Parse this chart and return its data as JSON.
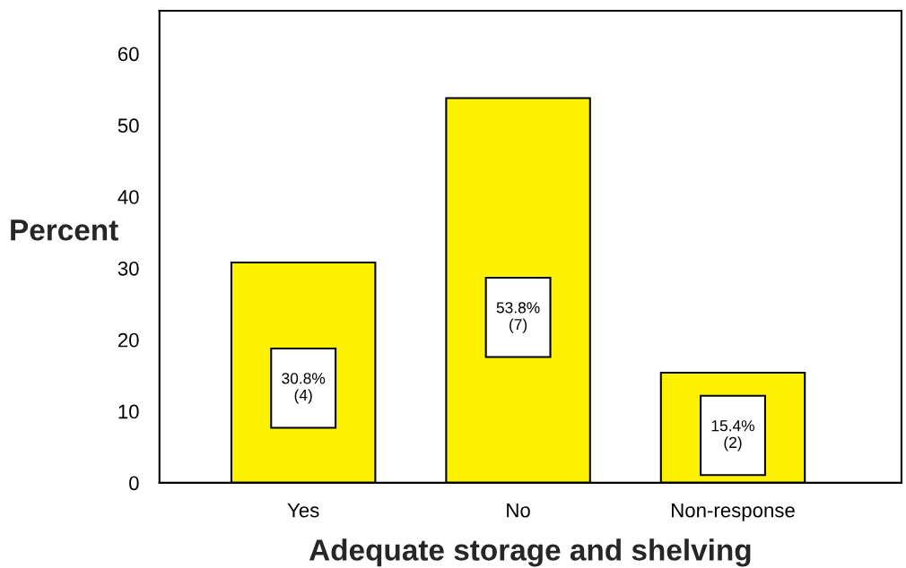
{
  "chart_data": {
    "type": "bar",
    "xlabel": "Adequate storage and shelving",
    "ylabel": "Percent",
    "categories": [
      "Yes",
      "No",
      "Non-response"
    ],
    "values": [
      30.8,
      53.8,
      15.4
    ],
    "color": "#fff200",
    "value_labels": [
      "30.8%\n(4)",
      "53.8%\n(7)",
      "15.4%\n(2)"
    ],
    "ylim": [
      0,
      66
    ],
    "yticks": [
      0,
      10,
      20,
      30,
      40,
      50,
      60
    ]
  }
}
